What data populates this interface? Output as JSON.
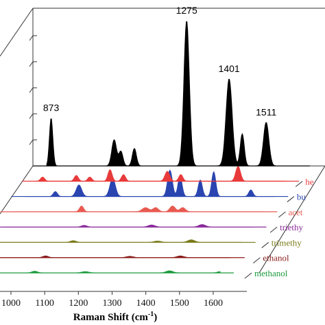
{
  "chart_data": {
    "type": "area",
    "title": "",
    "xlabel": "Raman Shift (cm",
    "xlabel_sup": "-1",
    "xlabel_suffix": ")",
    "xlim": [
      1000,
      1700
    ],
    "x_ticks": [
      1000,
      1100,
      1200,
      1300,
      1400,
      1500,
      1600
    ],
    "annotations": [
      {
        "text": "873",
        "x": 873
      },
      {
        "text": "1275",
        "x": 1275
      },
      {
        "text": "1401",
        "x": 1401
      },
      {
        "text": "1511",
        "x": 1511
      }
    ],
    "series": [
      {
        "key": "methanol",
        "name": "methanol",
        "color": "#1a9a3c",
        "peaks": [
          [
            1050,
            0.02,
            8
          ],
          [
            1200,
            0.015,
            10
          ],
          [
            1450,
            0.025,
            10
          ],
          [
            1600,
            0.015,
            8
          ]
        ]
      },
      {
        "key": "ethanol",
        "name": "ethanol",
        "color": "#8b1a1a",
        "peaks": [
          [
            1050,
            0.02,
            8
          ],
          [
            1300,
            0.015,
            10
          ],
          [
            1450,
            0.02,
            10
          ]
        ]
      },
      {
        "key": "trimethyl",
        "name": "trimethy",
        "color": "#7a7a1a",
        "peaks": [
          [
            1100,
            0.02,
            8
          ],
          [
            1350,
            0.015,
            10
          ],
          [
            1450,
            0.03,
            10
          ]
        ]
      },
      {
        "key": "triethyl",
        "name": "triethy",
        "color": "#8a2a9a",
        "peaks": [
          [
            1100,
            0.02,
            8
          ],
          [
            1300,
            0.025,
            10
          ],
          [
            1450,
            0.03,
            10
          ]
        ]
      },
      {
        "key": "acetone",
        "name": "acet",
        "color": "#e85a50",
        "peaks": [
          [
            1060,
            0.07,
            6
          ],
          [
            1250,
            0.05,
            10
          ],
          [
            1280,
            0.05,
            8
          ],
          [
            1330,
            0.07,
            8
          ],
          [
            1360,
            0.05,
            8
          ]
        ]
      },
      {
        "key": "butane",
        "name": "bu",
        "color": "#2a45b0",
        "peaks": [
          [
            950,
            0.06,
            6
          ],
          [
            1020,
            0.14,
            8
          ],
          [
            1120,
            0.22,
            8
          ],
          [
            1290,
            0.32,
            7
          ],
          [
            1320,
            0.25,
            6
          ],
          [
            1380,
            0.2,
            6
          ],
          [
            1420,
            0.3,
            6
          ],
          [
            1530,
            0.08,
            6
          ]
        ]
      },
      {
        "key": "hexane",
        "name": "he",
        "color": "#e83a3a",
        "peaks": [
          [
            880,
            0.05,
            6
          ],
          [
            980,
            0.07,
            6
          ],
          [
            1020,
            0.05,
            6
          ],
          [
            1080,
            0.14,
            6
          ],
          [
            1120,
            0.08,
            6
          ],
          [
            1250,
            0.12,
            7
          ],
          [
            1290,
            0.08,
            6
          ],
          [
            1460,
            0.18,
            7
          ]
        ]
      },
      {
        "key": "mixture",
        "name": "",
        "color": "#000000",
        "peaks": [
          [
            873,
            0.33,
            5
          ],
          [
            1060,
            0.18,
            7
          ],
          [
            1080,
            0.1,
            6
          ],
          [
            1120,
            0.12,
            6
          ],
          [
            1275,
            1.0,
            8
          ],
          [
            1401,
            0.6,
            9
          ],
          [
            1440,
            0.22,
            6
          ],
          [
            1511,
            0.3,
            8
          ]
        ]
      }
    ]
  }
}
